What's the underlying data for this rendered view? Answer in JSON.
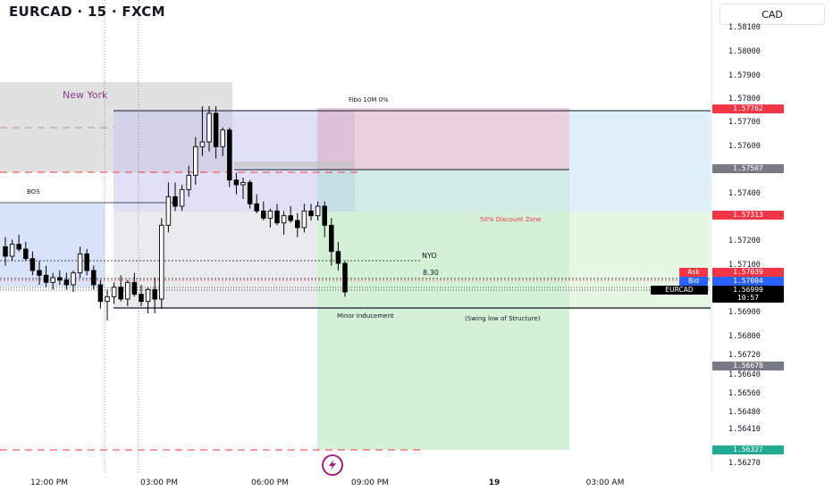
{
  "header": {
    "title": "EURCAD · 15 · FXCM",
    "currency_button": "CAD"
  },
  "price_axis": {
    "labels": [
      "1.58100",
      "1.58000",
      "1.57900",
      "1.57800",
      "1.57700",
      "1.57600",
      "1.57400",
      "1.57200",
      "1.57100",
      "1.56900",
      "1.56800",
      "1.56720",
      "1.56640",
      "1.56560",
      "1.56480",
      "1.56410",
      "1.56270"
    ]
  },
  "badges": {
    "fibo_top": {
      "text": "1.57762",
      "color": "#f23645"
    },
    "mid_zone": {
      "text": "1.57507",
      "color": "#787b86"
    },
    "discount": {
      "text": "1.57313",
      "color": "#f23645"
    },
    "ask": {
      "label": "Ask",
      "text": "1.57039",
      "color": "#f23645"
    },
    "bid": {
      "label": "Bid",
      "text": "1.57004",
      "color": "#2962ff"
    },
    "last": {
      "label": "EURCAD",
      "text": "1.56999",
      "sub": "10:57",
      "color": "#000000"
    },
    "low_mid": {
      "text": "1.56678",
      "color": "#787b86"
    },
    "target": {
      "text": "1.56327",
      "color": "#22ab94"
    }
  },
  "time_axis": [
    "12:00 PM",
    "03:00 PM",
    "06:00 PM",
    "09:00 PM",
    "19",
    "03:00 AM"
  ],
  "annotations": {
    "session": "New York",
    "bos": "BOS",
    "fibo": "Fibo 10M 0%",
    "discount_zone": "50% Discount Zone",
    "nyo": "NYO",
    "time_830": "8.30",
    "minor_inducement": "Minor Inducement",
    "swing_low": "(Swing low of Structure)"
  },
  "chart_data": {
    "type": "candlestick",
    "symbol": "EURCAD",
    "interval": "15",
    "ylim": [
      1.5625,
      1.5815
    ],
    "candles": [
      [
        1.5718,
        1.5722,
        1.571,
        1.5714
      ],
      [
        1.5714,
        1.5721,
        1.5712,
        1.5719
      ],
      [
        1.5719,
        1.5723,
        1.5716,
        1.5717
      ],
      [
        1.5717,
        1.572,
        1.5712,
        1.5713
      ],
      [
        1.5713,
        1.5716,
        1.5706,
        1.5708
      ],
      [
        1.5708,
        1.5712,
        1.5702,
        1.5706
      ],
      [
        1.5706,
        1.571,
        1.5701,
        1.5703
      ],
      [
        1.5703,
        1.5707,
        1.57,
        1.5705
      ],
      [
        1.5705,
        1.5708,
        1.5702,
        1.5704
      ],
      [
        1.5704,
        1.5707,
        1.57,
        1.5702
      ],
      [
        1.5702,
        1.5708,
        1.5699,
        1.5707
      ],
      [
        1.5707,
        1.5718,
        1.5705,
        1.5715
      ],
      [
        1.5715,
        1.5717,
        1.5706,
        1.5708
      ],
      [
        1.5708,
        1.571,
        1.57,
        1.5702
      ],
      [
        1.5702,
        1.5704,
        1.5692,
        1.5695
      ],
      [
        1.5695,
        1.57,
        1.5687,
        1.5697
      ],
      [
        1.5697,
        1.5703,
        1.5694,
        1.5701
      ],
      [
        1.5701,
        1.5706,
        1.5695,
        1.5696
      ],
      [
        1.5696,
        1.5704,
        1.5693,
        1.5703
      ],
      [
        1.5703,
        1.5707,
        1.5697,
        1.5698
      ],
      [
        1.5698,
        1.5702,
        1.5693,
        1.5695
      ],
      [
        1.5695,
        1.5701,
        1.569,
        1.57
      ],
      [
        1.57,
        1.5705,
        1.569,
        1.5696
      ],
      [
        1.5696,
        1.573,
        1.5692,
        1.5727
      ],
      [
        1.5727,
        1.5745,
        1.5724,
        1.5739
      ],
      [
        1.5739,
        1.5745,
        1.5733,
        1.5735
      ],
      [
        1.5735,
        1.5744,
        1.5733,
        1.5742
      ],
      [
        1.5742,
        1.5752,
        1.5739,
        1.5748
      ],
      [
        1.5748,
        1.5764,
        1.5744,
        1.576
      ],
      [
        1.576,
        1.5777,
        1.5756,
        1.5762
      ],
      [
        1.5762,
        1.5777,
        1.5758,
        1.5774
      ],
      [
        1.5774,
        1.5777,
        1.5755,
        1.576
      ],
      [
        1.576,
        1.5768,
        1.5756,
        1.5767
      ],
      [
        1.5767,
        1.5768,
        1.5743,
        1.5746
      ],
      [
        1.5746,
        1.5749,
        1.574,
        1.5744
      ],
      [
        1.5744,
        1.5747,
        1.5738,
        1.5745
      ],
      [
        1.5745,
        1.5746,
        1.5734,
        1.5736
      ],
      [
        1.5736,
        1.574,
        1.5732,
        1.5733
      ],
      [
        1.5733,
        1.5737,
        1.5729,
        1.573
      ],
      [
        1.573,
        1.5734,
        1.5726,
        1.5733
      ],
      [
        1.5733,
        1.5736,
        1.5727,
        1.5728
      ],
      [
        1.5728,
        1.5733,
        1.5723,
        1.5731
      ],
      [
        1.5731,
        1.5735,
        1.5728,
        1.5729
      ],
      [
        1.5729,
        1.5732,
        1.5722,
        1.5726
      ],
      [
        1.5726,
        1.5736,
        1.5724,
        1.5733
      ],
      [
        1.5733,
        1.5736,
        1.5729,
        1.5731
      ],
      [
        1.5731,
        1.5737,
        1.5729,
        1.5735
      ],
      [
        1.5735,
        1.5737,
        1.5722,
        1.5727
      ],
      [
        1.5727,
        1.573,
        1.571,
        1.5716
      ],
      [
        1.5716,
        1.572,
        1.5708,
        1.5711
      ],
      [
        1.5711,
        1.5712,
        1.5697,
        1.5699
      ]
    ]
  }
}
